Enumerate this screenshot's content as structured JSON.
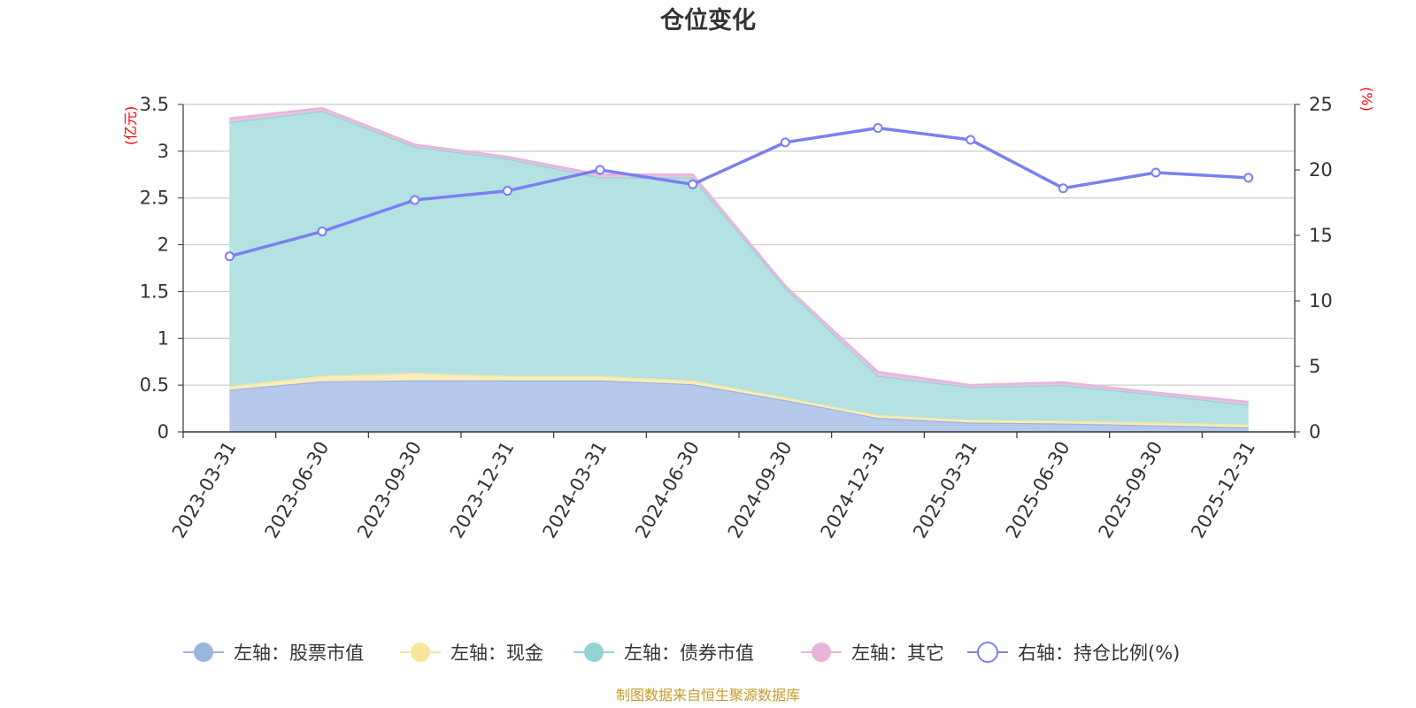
{
  "chart_data": {
    "type": "area",
    "title": "仓位变化",
    "left_axis": {
      "unit": "(亿元)",
      "ylim": [
        0,
        3.5
      ],
      "ticks": [
        "0",
        "0.5",
        "1",
        "1.5",
        "2",
        "2.5",
        "3",
        "3.5"
      ]
    },
    "right_axis": {
      "unit": "(%)",
      "ylim": [
        0,
        25
      ],
      "ticks": [
        "0",
        "5",
        "10",
        "15",
        "20",
        "25"
      ]
    },
    "categories": [
      "2023-03-31",
      "2023-06-30",
      "2023-09-30",
      "2023-12-31",
      "2024-03-31",
      "2024-06-30",
      "2024-09-30",
      "2024-12-31",
      "2025-03-31",
      "2025-06-30",
      "2025-09-30",
      "2025-12-31"
    ],
    "series": [
      {
        "name": "左轴：股票市值",
        "axis": "left",
        "stack": true,
        "color": "#9bb5e1",
        "fill": "#b7c9ea",
        "values": [
          0.45,
          0.54,
          0.55,
          0.55,
          0.55,
          0.51,
          0.34,
          0.15,
          0.1,
          0.09,
          0.07,
          0.05
        ]
      },
      {
        "name": "左轴：现金",
        "axis": "left",
        "stack": true,
        "color": "#f6e69c",
        "fill": "#f8edbb",
        "values": [
          0.04,
          0.06,
          0.08,
          0.05,
          0.05,
          0.04,
          0.03,
          0.03,
          0.03,
          0.03,
          0.03,
          0.03
        ]
      },
      {
        "name": "左轴：债券市值",
        "axis": "left",
        "stack": true,
        "color": "#94d3d3",
        "fill": "#b4e1e1",
        "values": [
          2.82,
          2.83,
          2.42,
          2.32,
          2.12,
          2.17,
          1.17,
          0.42,
          0.35,
          0.38,
          0.3,
          0.21
        ]
      },
      {
        "name": "左轴：其它",
        "axis": "left",
        "stack": true,
        "color": "#e8b4da",
        "fill": "#edc3e2",
        "values": [
          0.04,
          0.03,
          0.02,
          0.02,
          0.03,
          0.03,
          0.02,
          0.04,
          0.02,
          0.03,
          0.02,
          0.03
        ]
      },
      {
        "name": "右轴：持仓比例(%)",
        "axis": "right",
        "stack": false,
        "color": "#7b7ff0",
        "values": [
          13.4,
          15.3,
          17.7,
          18.4,
          20.0,
          18.9,
          22.1,
          23.2,
          22.3,
          18.6,
          19.8,
          19.4
        ]
      }
    ],
    "grid": true,
    "legend_position": "bottom"
  },
  "footer": {
    "text": "制图数据来自恒生聚源数据库"
  },
  "colors": {
    "unit": "#ff0000",
    "footer": "#c89a2a",
    "grid": "#cccccc",
    "axis": "#333333"
  }
}
